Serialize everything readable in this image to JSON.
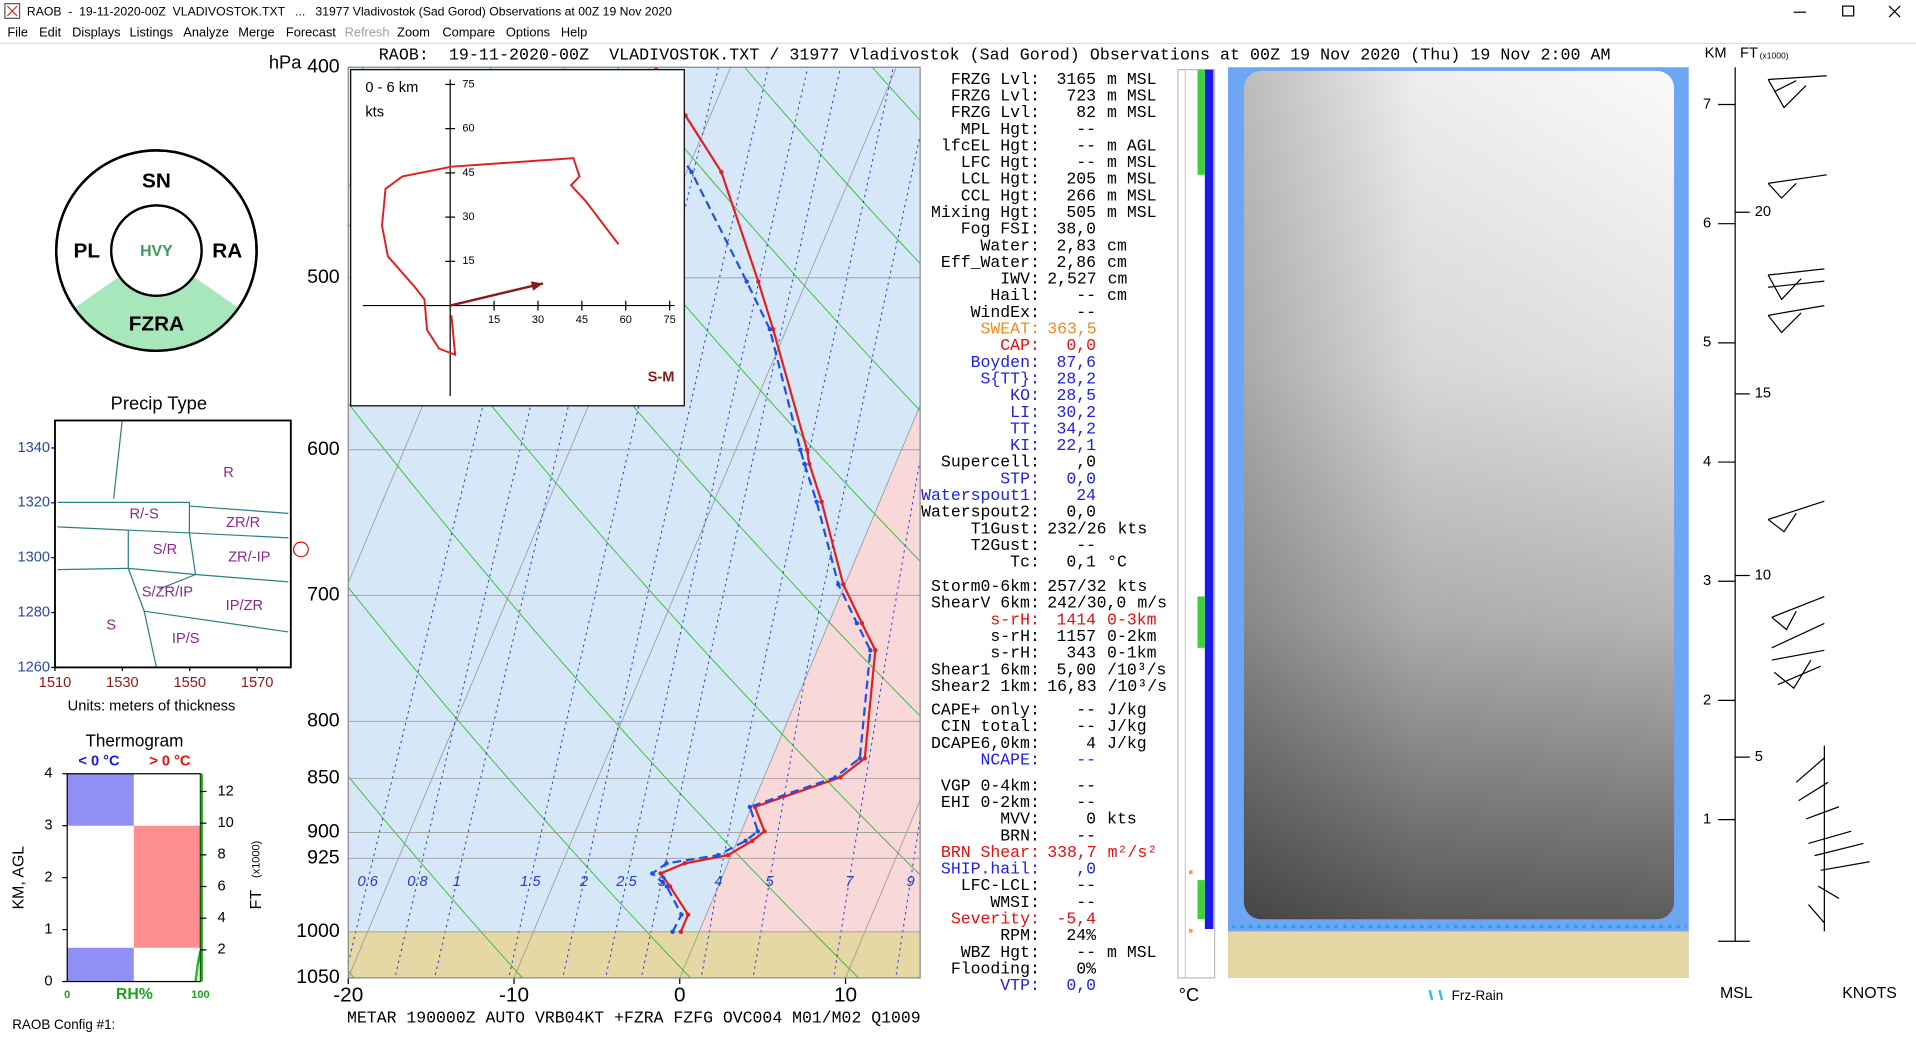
{
  "window": {
    "title": "RAOB  -  19-11-2020-00Z  VLADIVOSTOK.TXT   ...   31977 Vladivostok (Sad Gorod) Observations at 00Z 19 Nov 2020"
  },
  "menu": [
    "File",
    "Edit",
    "Displays",
    "Listings",
    "Analyze",
    "Merge",
    "Forecast",
    "Refresh",
    "Zoom",
    "Compare",
    "Options",
    "Help"
  ],
  "header": "RAOB:  19-11-2020-00Z  VLADIVOSTOK.TXT / 31977 Vladivostok (Sad Gorod) Observations at 00Z 19 Nov 2020 (Thu) 19 Nov 2:00 AM",
  "precip_wheel": {
    "top": "SN",
    "left": "PL",
    "right": "RA",
    "center": "HVY",
    "bottom": "FZRA"
  },
  "chart_data": [
    {
      "type": "skewt",
      "y_label": "hPa",
      "ylim": [
        1050,
        400
      ],
      "yticks": [
        400,
        500,
        600,
        700,
        800,
        850,
        900,
        925,
        1000,
        1050
      ],
      "log_scale": true,
      "xlim": [
        -20,
        14.5
      ],
      "xticks": [
        -20,
        -10,
        0,
        10
      ],
      "mixing_ratios": [
        0.6,
        0.8,
        1,
        1.5,
        2,
        2.5,
        3,
        4,
        5,
        7,
        9
      ],
      "pressure": [
        1000,
        982,
        953,
        940,
        930,
        922,
        908,
        899,
        876,
        849,
        832,
        742,
        721,
        692,
        634,
        609,
        600,
        528,
        502,
        447,
        421,
        400
      ],
      "series": [
        {
          "color": "#e02020",
          "dashed": false,
          "values": [
            -1.1,
            -1.1,
            -2.9,
            -3.8,
            -2.6,
            -0.2,
            0.9,
            1.4,
            0.2,
            4.6,
            5.6,
            3.5,
            2.0,
            -0.1,
            -3.5,
            -5.2,
            -5.7,
            -10.8,
            -12.9,
            -17.9,
            -21.5,
            -24.5
          ]
        },
        {
          "color": "#2050e0",
          "dashed": true,
          "values": [
            -1.6,
            -1.5,
            -3.1,
            -4.3,
            -3.7,
            -0.8,
            0.5,
            1.0,
            -0.1,
            4.3,
            5.3,
            3.2,
            1.7,
            -0.4,
            -3.8,
            -5.5,
            -6.1,
            -11.0,
            -13.6,
            -19.7,
            -23.5,
            null
          ]
        }
      ]
    },
    {
      "type": "hodograph",
      "label": "0 - 6 km",
      "unit": "kts",
      "xlim": [
        -34,
        80
      ],
      "ylim": [
        -34,
        80
      ],
      "xticks": [
        15,
        30,
        45,
        60,
        75
      ],
      "yticks": [
        15,
        30,
        45,
        60,
        75
      ],
      "color": "#e02020",
      "u": [
        0.4,
        1.7,
        -3.8,
        -7.9,
        -8.8,
        -12.1,
        -21.3,
        -23.3,
        -22.1,
        -16.3,
        0.4,
        42.1,
        44.2,
        41.3,
        46.3,
        57.5
      ],
      "v": [
        -3.3,
        -16.7,
        -14.6,
        -8.3,
        2.1,
        6.3,
        16.7,
        27.1,
        39.6,
        43.8,
        47.1,
        50.0,
        43.8,
        40.8,
        35.4,
        20.8
      ],
      "storm_motion": {
        "label": "S-M",
        "u": 31.7,
        "v": 7.5,
        "color": "#8b1a1a"
      }
    },
    {
      "type": "nomogram",
      "title": "Precip Type",
      "x_label": "Units: meters of thickness",
      "xlim": [
        1510,
        1580
      ],
      "ylim": [
        1260,
        1350
      ],
      "xticks": [
        1510,
        1530,
        1550,
        1570
      ],
      "yticks": [
        1260,
        1280,
        1300,
        1320,
        1340
      ],
      "regions": [
        "R",
        "R/-S",
        "ZR/R",
        "S/R",
        "ZR/-IP",
        "S/ZR/IP",
        "IP/ZR",
        "S",
        "IP/S"
      ],
      "current": {
        "x": 1583,
        "y": 1303
      }
    },
    {
      "type": "thermogram",
      "title": "Thermogram",
      "cold_label": "< 0 °C",
      "warm_label": "> 0 °C",
      "y_label": "KM, AGL",
      "y2_label": "FT",
      "y2_unit": "(x1000)",
      "x_label": "RH%",
      "xticks": [
        0,
        100
      ],
      "ylim": [
        0,
        4
      ],
      "yticks": [
        0,
        1,
        2,
        3,
        4
      ],
      "y2lim": [
        0,
        13.12
      ],
      "y2ticks": [
        2,
        4,
        6,
        8,
        10,
        12
      ],
      "layers": [
        {
          "base": 0,
          "top": 0.65,
          "side": "left",
          "color": "#8f8ff5"
        },
        {
          "base": 0.65,
          "top": 3.0,
          "side": "right",
          "color": "#ff8f8f"
        },
        {
          "base": 3.0,
          "top": 4,
          "side": "left",
          "color": "#8f8ff5"
        }
      ]
    }
  ],
  "parameters": [
    [
      {
        "label": "FRZG Lvl:",
        "value": "3165",
        "unit": "m MSL"
      },
      {
        "label": "FRZG Lvl:",
        "value": "723",
        "unit": "m MSL"
      },
      {
        "label": "FRZG Lvl:",
        "value": "82",
        "unit": "m MSL"
      },
      {
        "label": "MPL Hgt:",
        "value": "--"
      },
      {
        "label": "lfcEL Hgt:",
        "value": "--",
        "unit": "m AGL"
      },
      {
        "label": "LFC Hgt:",
        "value": "--",
        "unit": "m MSL"
      },
      {
        "label": "LCL Hgt:",
        "value": "205",
        "unit": "m MSL"
      },
      {
        "label": "CCL Hgt:",
        "value": "266",
        "unit": "m MSL"
      },
      {
        "label": "Mixing Hgt:",
        "value": "505",
        "unit": "m MSL"
      },
      {
        "label": "Fog FSI:",
        "value": "38,0"
      },
      {
        "label": "Water:",
        "value": "2,83",
        "unit": "cm"
      },
      {
        "label": "Eff_Water:",
        "value": "2,86",
        "unit": "cm"
      },
      {
        "label": "IWV:",
        "value": "2,527",
        "unit": "cm"
      },
      {
        "label": "Hail:",
        "value": "--",
        "unit": "cm"
      },
      {
        "label": "WindEx:",
        "value": "--"
      },
      {
        "label": "SWEAT:",
        "value": "363,5",
        "color": "#f08c1e"
      },
      {
        "label": "CAP:",
        "value": "0,0",
        "color": "#e01010"
      },
      {
        "label": "Boyden:",
        "value": "87,6",
        "color": "#2020e0"
      },
      {
        "label": "S{TT}:",
        "value": "28,2",
        "color": "#2020e0"
      },
      {
        "label": "KO:",
        "value": "28,5",
        "color": "#2020e0"
      },
      {
        "label": "LI:",
        "value": "30,2",
        "color": "#2020e0"
      },
      {
        "label": "TT:",
        "value": "34,2",
        "color": "#2020e0"
      },
      {
        "label": "KI:",
        "value": "22,1",
        "color": "#2020e0"
      },
      {
        "label": "Supercell:",
        "value": ",0"
      },
      {
        "label": "STP:",
        "value": "0,0",
        "color": "#2020e0"
      },
      {
        "label": "Waterspout1:",
        "value": "24",
        "color": "#2020e0"
      },
      {
        "label": "Waterspout2:",
        "value": "0,0"
      },
      {
        "label": "T1Gust:",
        "value": "232/26",
        "unit": "kts"
      },
      {
        "label": "T2Gust:",
        "value": "--"
      },
      {
        "label": "Tc:",
        "value": "0,1",
        "unit": "°C"
      }
    ],
    [
      {
        "label": "Storm0-6km:",
        "value": "257/32",
        "unit": "kts"
      },
      {
        "label": "ShearV 6km:",
        "value": "242/30,0",
        "unit": "m/s"
      },
      {
        "label": "s-rH:",
        "value": "1414",
        "unit": "0-3km",
        "color": "#e01010"
      },
      {
        "label": "s-rH:",
        "value": "1157",
        "unit": "0-2km"
      },
      {
        "label": "s-rH:",
        "value": "343",
        "unit": "0-1km"
      },
      {
        "label": "Shear1 6km:",
        "value": "5,00",
        "unit": "/10³/s"
      },
      {
        "label": "Shear2 1km:",
        "value": "16,83",
        "unit": "/10³/s"
      }
    ],
    [
      {
        "label": "CAPE+ only:",
        "value": "--",
        "unit": "J/kg"
      },
      {
        "label": "CIN total:",
        "value": "--",
        "unit": "J/kg"
      },
      {
        "label": "DCAPE6,0km:",
        "value": "4",
        "unit": "J/kg"
      },
      {
        "label": "NCAPE:",
        "value": "--",
        "color": "#2020e0"
      }
    ],
    [
      {
        "label": "VGP 0-4km:",
        "value": "--"
      },
      {
        "label": "EHI 0-2km:",
        "value": "--"
      },
      {
        "label": "MVV:",
        "value": "0",
        "unit": "kts"
      },
      {
        "label": "BRN:",
        "value": "--"
      },
      {
        "label": "BRN Shear:",
        "value": "338,7",
        "unit": "m²/s²",
        "color": "#e01010"
      },
      {
        "label": "SHIP.hail:",
        "value": ",0",
        "color": "#2020e0"
      },
      {
        "label": "LFC-LCL:",
        "value": "--"
      },
      {
        "label": "WMSI:",
        "value": "--"
      },
      {
        "label": "Severity:",
        "value": "-5,4",
        "color": "#e01010"
      },
      {
        "label": "RPM:",
        "value": "24%"
      },
      {
        "label": "WBZ Hgt:",
        "value": "--",
        "unit": "m MSL"
      },
      {
        "label": "Flooding:",
        "value": "0%"
      },
      {
        "label": "VTP:",
        "value": "0,0",
        "color": "#2020e0"
      }
    ]
  ],
  "metar": "METAR 190000Z AUTO VRB04KT +FZRA FZFG OVC004 M01/M02 Q1009",
  "config": "RAOB Config #1:",
  "temp_strip_label": "°C",
  "cloud_legend": "Frz-Rain",
  "wind_profile": {
    "km_label": "KM",
    "ft_label": "FT",
    "ft_unit": "(x1000)",
    "bottom_left": "MSL",
    "bottom_right": "KNOTS",
    "ylim": [
      0,
      7
    ],
    "km_ticks": [
      1,
      2,
      3,
      4,
      5,
      6,
      7
    ],
    "ft_ticks": [
      5,
      10,
      15,
      20
    ]
  }
}
